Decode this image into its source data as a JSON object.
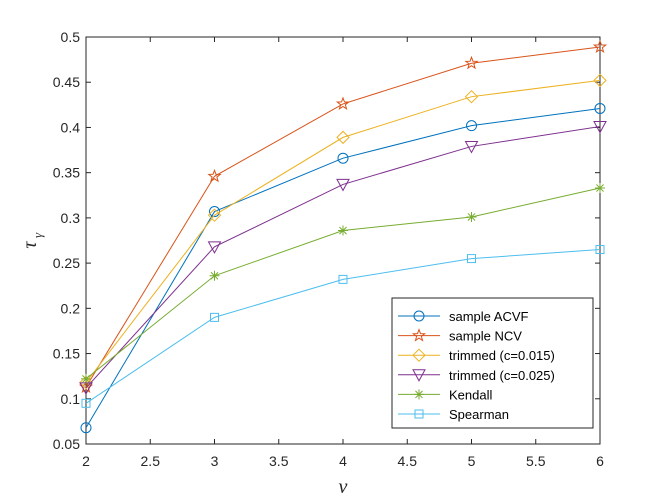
{
  "chart_data": {
    "type": "line",
    "title": "",
    "xlabel": "ν",
    "ylabel_symbol": "τ",
    "ylabel_subscript": "γ",
    "xlim": [
      2,
      6
    ],
    "ylim": [
      0.05,
      0.5
    ],
    "xticks": [
      2,
      2.5,
      3,
      3.5,
      4,
      4.5,
      5,
      5.5,
      6
    ],
    "xtick_labels": [
      "2",
      "2.5",
      "3",
      "3.5",
      "4",
      "4.5",
      "5",
      "5.5",
      "6"
    ],
    "yticks": [
      0.05,
      0.1,
      0.15,
      0.2,
      0.25,
      0.3,
      0.35,
      0.4,
      0.45,
      0.5
    ],
    "ytick_labels": [
      "0.05",
      "0.1",
      "0.15",
      "0.2",
      "0.25",
      "0.3",
      "0.35",
      "0.4",
      "0.45",
      "0.5"
    ],
    "grid": false,
    "legend_position": "bottom-right",
    "x": [
      2,
      3,
      4,
      5,
      6
    ],
    "series": [
      {
        "name": "sample ACVF",
        "marker": "circle",
        "color": "#0072BD",
        "values": [
          0.068,
          0.307,
          0.366,
          0.402,
          0.421
        ]
      },
      {
        "name": "sample NCV",
        "marker": "star",
        "color": "#D95319",
        "values": [
          0.113,
          0.346,
          0.426,
          0.471,
          0.489
        ]
      },
      {
        "name": "trimmed (c=0.015)",
        "marker": "diamond",
        "color": "#EDB120",
        "values": [
          0.118,
          0.303,
          0.389,
          0.434,
          0.452
        ]
      },
      {
        "name": "trimmed (c=0.025)",
        "marker": "triangle-down",
        "color": "#7E2F8E",
        "values": [
          0.112,
          0.268,
          0.337,
          0.379,
          0.401
        ]
      },
      {
        "name": "Kendall",
        "marker": "asterisk",
        "color": "#77AC30",
        "values": [
          0.122,
          0.236,
          0.286,
          0.301,
          0.333
        ]
      },
      {
        "name": "Spearman",
        "marker": "square",
        "color": "#4DBEEE",
        "values": [
          0.095,
          0.19,
          0.232,
          0.255,
          0.265
        ]
      }
    ]
  }
}
